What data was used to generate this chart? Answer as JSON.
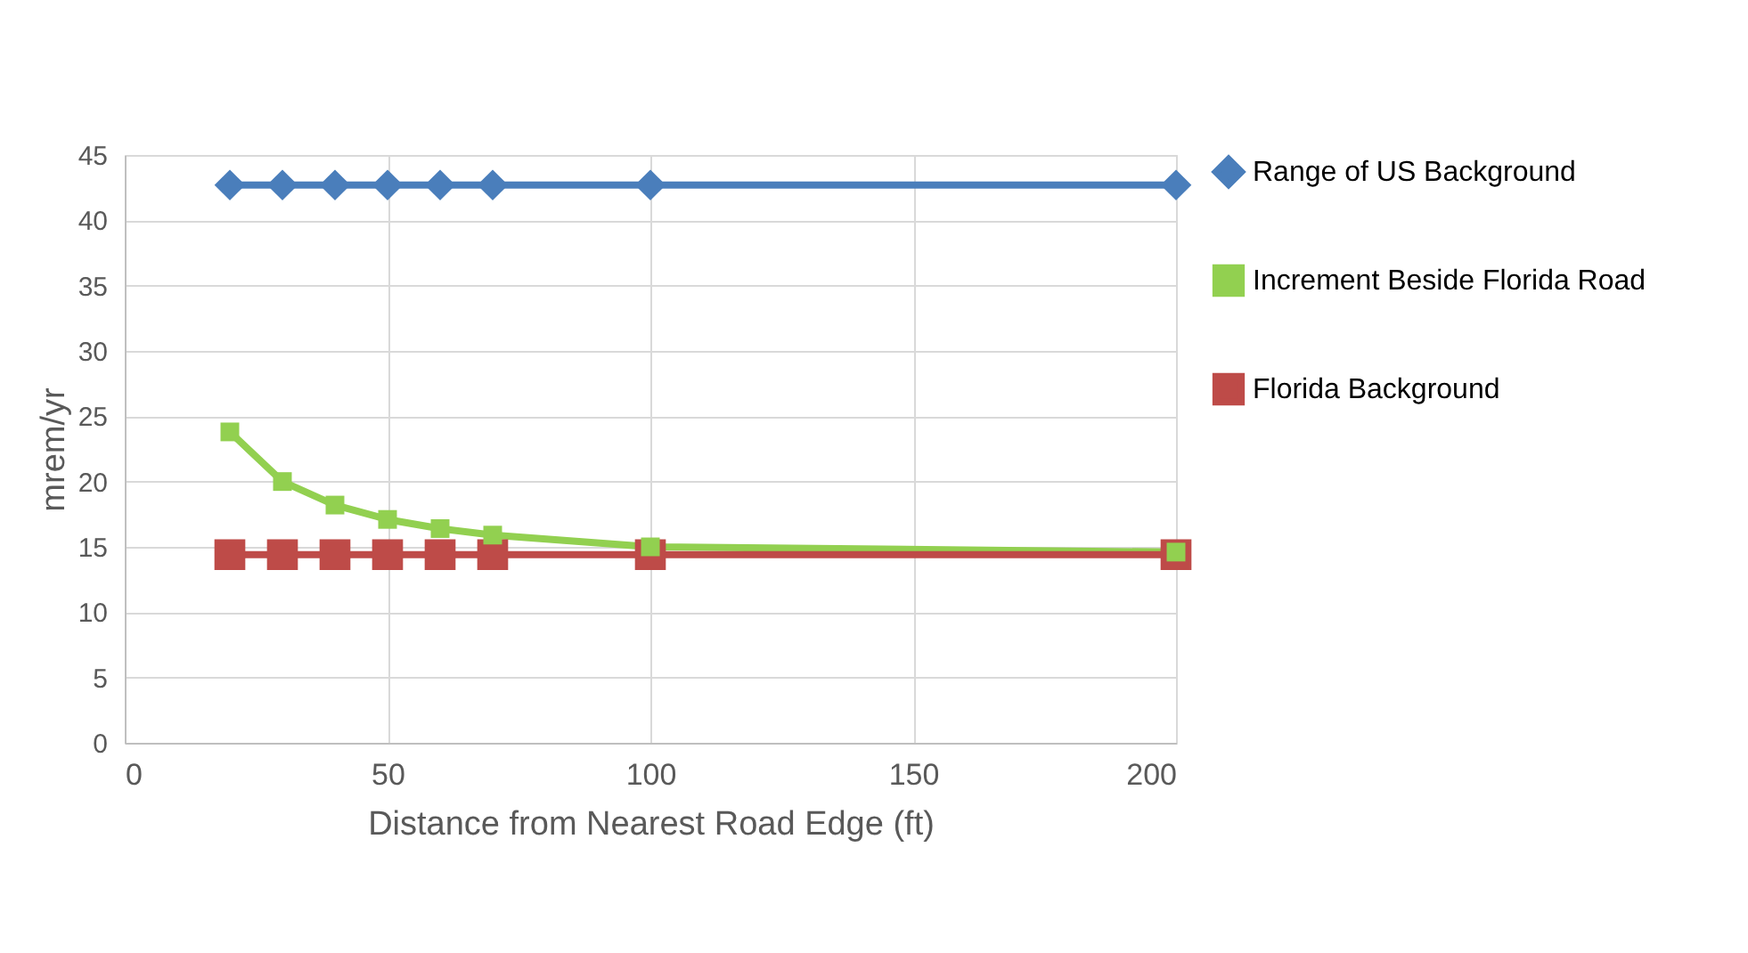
{
  "chart_data": {
    "type": "line",
    "xlabel": "Distance from Nearest Road Edge (ft)",
    "ylabel": "mrem/yr",
    "x": [
      20,
      30,
      40,
      50,
      60,
      70,
      100,
      200
    ],
    "series": [
      {
        "name": "Range of US Background",
        "color": "#4a7ebb",
        "marker": "diamond",
        "values": [
          42.7,
          42.7,
          42.7,
          42.7,
          42.7,
          42.7,
          42.7,
          42.7
        ]
      },
      {
        "name": "Increment Beside Florida Road",
        "color": "#92d050",
        "marker": "square",
        "values": [
          23.8,
          20.0,
          18.2,
          17.1,
          16.4,
          15.9,
          15.0,
          14.6
        ]
      },
      {
        "name": "Florida Background",
        "color": "#be4b48",
        "marker": "square",
        "values": [
          14.4,
          14.4,
          14.4,
          14.4,
          14.4,
          14.4,
          14.4,
          14.4
        ]
      }
    ],
    "xlim": [
      0,
      200
    ],
    "xticks": [
      0,
      50,
      100,
      150,
      200
    ],
    "ylim": [
      0,
      45
    ],
    "yticks": [
      0,
      5,
      10,
      15,
      20,
      25,
      30,
      35,
      40,
      45
    ],
    "grid": true,
    "legend": "right",
    "line_style": "solid"
  }
}
